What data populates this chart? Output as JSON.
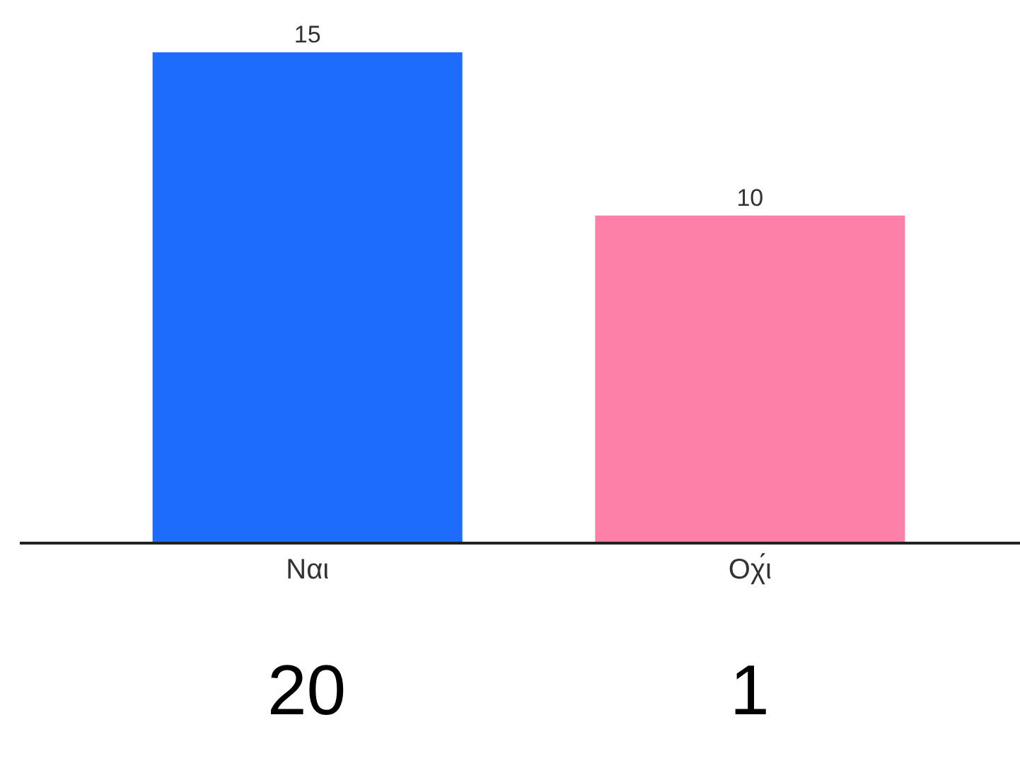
{
  "chart_data": {
    "type": "bar",
    "categories": [
      "Ναι",
      "Οχ́ι"
    ],
    "values": [
      15,
      10
    ],
    "colors": [
      "#1d6cfb",
      "#fd80a9"
    ],
    "data_labels": true,
    "grid": false,
    "tick_labels": "x",
    "annotations": [
      "20",
      "1"
    ]
  }
}
